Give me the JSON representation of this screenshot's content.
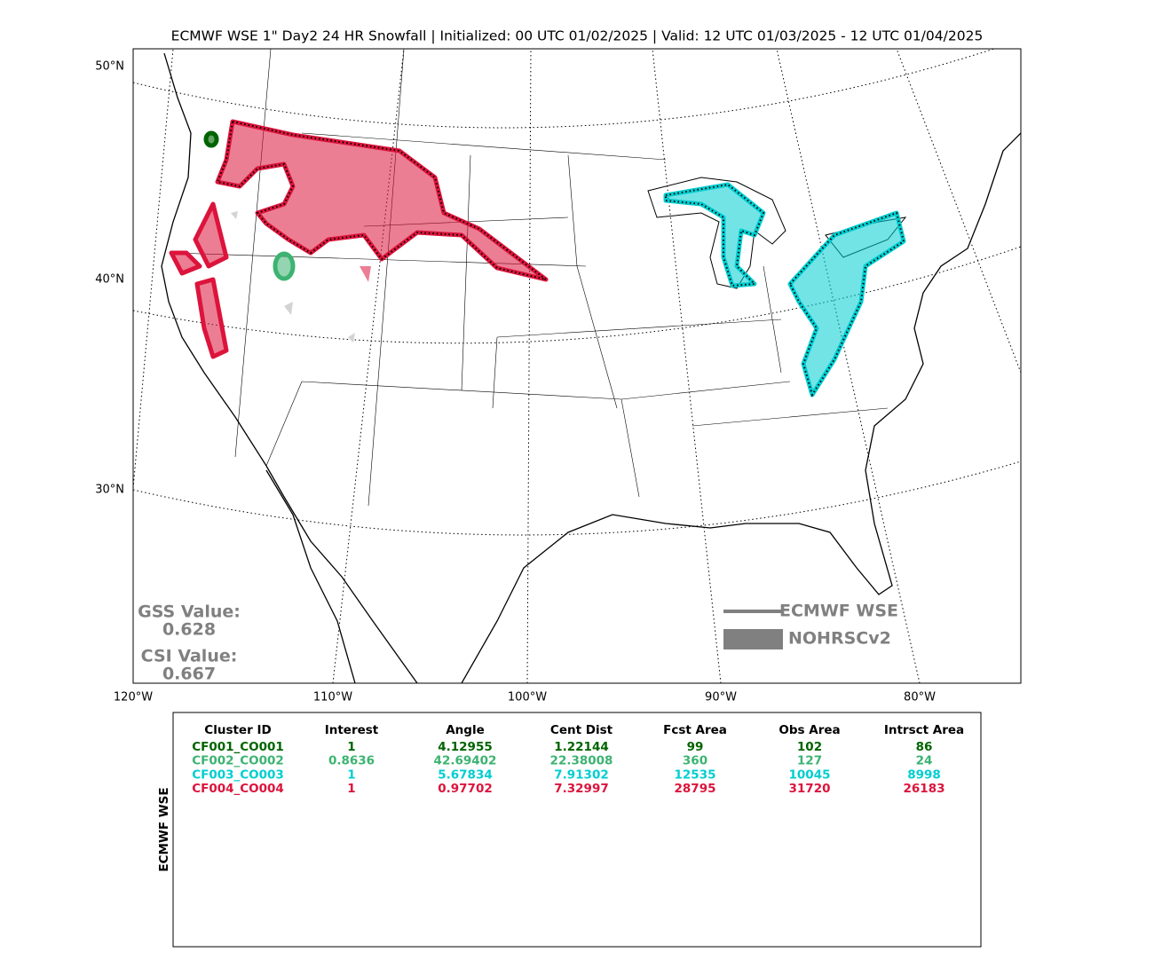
{
  "header": {
    "title": "ECMWF WSE 1\" Day2 24 HR Snowfall | Initialized: 00 UTC 01/02/2025 | Valid: 12 UTC 01/03/2025 - 12 UTC 01/04/2025"
  },
  "map": {
    "lat_labels": [
      "50°N",
      "40°N",
      "30°N"
    ],
    "lon_labels": [
      "120°W",
      "110°W",
      "100°W",
      "90°W",
      "80°W"
    ],
    "gss": {
      "label": "GSS Value:",
      "value": 0.628
    },
    "csi": {
      "label": "CSI Value:",
      "value": 0.667
    },
    "legend": [
      {
        "name": "ECMWF WSE",
        "color": "#808080"
      },
      {
        "name": "NOHRSCv2",
        "color": "#808080"
      }
    ]
  },
  "table": {
    "side_label": "ECMWF WSE",
    "columns": [
      "Cluster ID",
      "Interest",
      "Angle",
      "Cent Dist",
      "Fcst Area",
      "Obs Area",
      "Intrsct Area"
    ],
    "rows": [
      {
        "color": "#006400",
        "cells": [
          "CF001_CO001",
          1,
          4.12955,
          1.22144,
          99,
          102,
          86
        ]
      },
      {
        "color": "#3cb371",
        "cells": [
          "CF002_CO002",
          0.8636,
          42.69402,
          22.38008,
          360,
          127,
          24
        ]
      },
      {
        "color": "#00ced1",
        "cells": [
          "CF003_CO003",
          1,
          5.67834,
          7.91302,
          12535,
          10045,
          8998
        ]
      },
      {
        "color": "#dc143c",
        "cells": [
          "CF004_CO004",
          1,
          0.97702,
          7.32997,
          28795,
          31720,
          26183
        ]
      }
    ]
  }
}
